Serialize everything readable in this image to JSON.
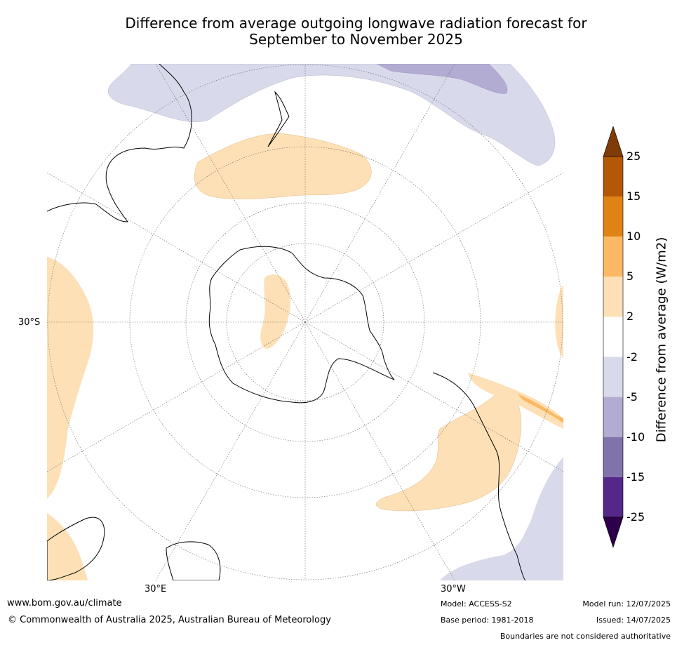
{
  "title": {
    "line1": "Difference from average outgoing longwave radiation forecast for",
    "line2": "September to November 2025"
  },
  "map": {
    "projection": "south polar stereographic",
    "lat_label": "30°S",
    "lon_labels": [
      "30°E",
      "30°W"
    ]
  },
  "colorbar": {
    "title": "Difference from average (W/m2)",
    "ticks": [
      "25",
      "15",
      "10",
      "5",
      "2",
      "-2",
      "-5",
      "-10",
      "-15",
      "-25"
    ],
    "colors": [
      "#7f3b08",
      "#b35806",
      "#e08214",
      "#fdb863",
      "#fee0b6",
      "#ffffff",
      "#d8daeb",
      "#b2abd2",
      "#8073ac",
      "#542788",
      "#2d004b"
    ]
  },
  "footer": {
    "url": "www.bom.gov.au/climate",
    "copyright": "© Commonwealth of Australia 2025, Australian Bureau of Meteorology",
    "model": "Model: ACCESS-S2",
    "base_period": "Base period: 1981-2018",
    "model_run": "Model run: 12/07/2025",
    "issued": "Issued: 14/07/2025",
    "disclaimer": "Boundaries are not considered authoritative"
  }
}
